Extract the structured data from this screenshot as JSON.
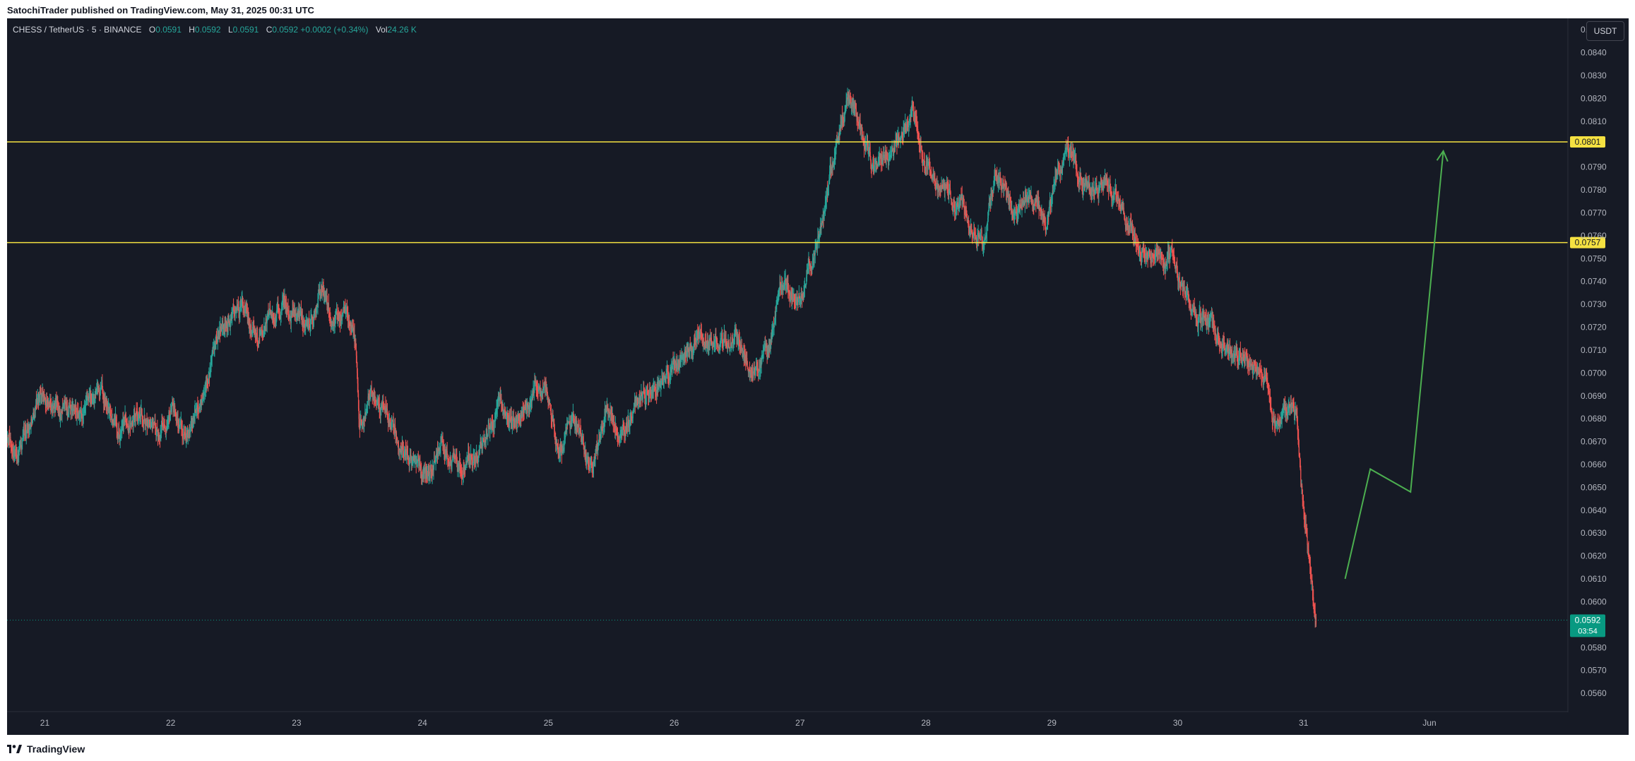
{
  "header": {
    "published": "SatochiTrader published on TradingView.com, May 31, 2025 00:31 UTC"
  },
  "legend": {
    "symbol": "CHESS / TetherUS · 5 · BINANCE",
    "o_label": "O",
    "o_value": "0.0591",
    "h_label": "H",
    "h_value": "0.0592",
    "l_label": "L",
    "l_value": "0.0591",
    "c_label": "C",
    "c_value": "0.0592 +0.0002 (+0.34%)",
    "vol_label": "Vol",
    "vol_value": "24.26 K"
  },
  "unit_button": "USDT",
  "footer": {
    "brand": "TradingView"
  },
  "colors": {
    "background": "#161a25",
    "up": "#26a69a",
    "down": "#ef5350",
    "level_line": "#f5e141",
    "arrow": "#4caf50",
    "current_price": "#089981"
  },
  "chart_data": {
    "type": "candlestick",
    "symbol": "CHESS/USDT",
    "interval": "5",
    "ylim": [
      0.0552,
      0.0855
    ],
    "y_ticks": [
      "0.0850",
      "0.0840",
      "0.0830",
      "0.0820",
      "0.0810",
      "0.0790",
      "0.0780",
      "0.0770",
      "0.0760",
      "0.0750",
      "0.0740",
      "0.0730",
      "0.0720",
      "0.0710",
      "0.0700",
      "0.0690",
      "0.0680",
      "0.0670",
      "0.0660",
      "0.0650",
      "0.0640",
      "0.0630",
      "0.0620",
      "0.0610",
      "0.0600",
      "0.0580",
      "0.0570",
      "0.0560"
    ],
    "x_ticks": [
      {
        "day": 21,
        "label": "21"
      },
      {
        "day": 22,
        "label": "22"
      },
      {
        "day": 23,
        "label": "23"
      },
      {
        "day": 24,
        "label": "24"
      },
      {
        "day": 25,
        "label": "25"
      },
      {
        "day": 26,
        "label": "26"
      },
      {
        "day": 27,
        "label": "27"
      },
      {
        "day": 28,
        "label": "28"
      },
      {
        "day": 29,
        "label": "29"
      },
      {
        "day": 30,
        "label": "30"
      },
      {
        "day": 31,
        "label": "31"
      },
      {
        "day": 32,
        "label": "Jun"
      }
    ],
    "xlim": [
      20.7,
      33.1
    ],
    "price_path": [
      [
        20.7,
        0.0672
      ],
      [
        20.8,
        0.0665
      ],
      [
        20.95,
        0.069
      ],
      [
        21.1,
        0.0685
      ],
      [
        21.3,
        0.068
      ],
      [
        21.45,
        0.069
      ],
      [
        21.6,
        0.0675
      ],
      [
        21.75,
        0.0682
      ],
      [
        21.9,
        0.0675
      ],
      [
        22.0,
        0.0688
      ],
      [
        22.1,
        0.067
      ],
      [
        22.25,
        0.069
      ],
      [
        22.4,
        0.072
      ],
      [
        22.55,
        0.0728
      ],
      [
        22.7,
        0.0718
      ],
      [
        22.85,
        0.0728
      ],
      [
        23.0,
        0.0725
      ],
      [
        23.1,
        0.072
      ],
      [
        23.2,
        0.0738
      ],
      [
        23.3,
        0.0722
      ],
      [
        23.4,
        0.0726
      ],
      [
        23.47,
        0.0712
      ],
      [
        23.5,
        0.0672
      ],
      [
        23.6,
        0.0692
      ],
      [
        23.75,
        0.068
      ],
      [
        23.9,
        0.0662
      ],
      [
        24.0,
        0.0655
      ],
      [
        24.15,
        0.0668
      ],
      [
        24.3,
        0.066
      ],
      [
        24.45,
        0.0665
      ],
      [
        24.6,
        0.0685
      ],
      [
        24.75,
        0.068
      ],
      [
        24.9,
        0.0695
      ],
      [
        25.0,
        0.0688
      ],
      [
        25.08,
        0.0662
      ],
      [
        25.2,
        0.068
      ],
      [
        25.35,
        0.0655
      ],
      [
        25.45,
        0.0682
      ],
      [
        25.6,
        0.0676
      ],
      [
        25.75,
        0.069
      ],
      [
        25.9,
        0.0695
      ],
      [
        26.05,
        0.0706
      ],
      [
        26.2,
        0.0718
      ],
      [
        26.35,
        0.0712
      ],
      [
        26.5,
        0.0716
      ],
      [
        26.62,
        0.07
      ],
      [
        26.75,
        0.0712
      ],
      [
        26.85,
        0.0738
      ],
      [
        27.0,
        0.0732
      ],
      [
        27.15,
        0.076
      ],
      [
        27.3,
        0.08
      ],
      [
        27.38,
        0.082
      ],
      [
        27.5,
        0.0805
      ],
      [
        27.6,
        0.0788
      ],
      [
        27.75,
        0.08
      ],
      [
        27.9,
        0.0812
      ],
      [
        28.0,
        0.0792
      ],
      [
        28.1,
        0.078
      ],
      [
        28.2,
        0.0775
      ],
      [
        28.35,
        0.0768
      ],
      [
        28.45,
        0.0756
      ],
      [
        28.55,
        0.0788
      ],
      [
        28.7,
        0.0772
      ],
      [
        28.85,
        0.0778
      ],
      [
        28.95,
        0.0768
      ],
      [
        29.05,
        0.0788
      ],
      [
        29.12,
        0.0796
      ],
      [
        29.25,
        0.0782
      ],
      [
        29.4,
        0.0778
      ],
      [
        29.5,
        0.078
      ],
      [
        29.58,
        0.0768
      ],
      [
        29.7,
        0.0755
      ],
      [
        29.85,
        0.0748
      ],
      [
        29.95,
        0.075
      ],
      [
        30.05,
        0.0735
      ],
      [
        30.15,
        0.0724
      ],
      [
        30.28,
        0.072
      ],
      [
        30.4,
        0.0706
      ],
      [
        30.55,
        0.0708
      ],
      [
        30.7,
        0.0698
      ],
      [
        30.78,
        0.0676
      ],
      [
        30.9,
        0.0684
      ],
      [
        30.95,
        0.0676
      ],
      [
        31.0,
        0.064
      ],
      [
        31.05,
        0.0615
      ],
      [
        31.08,
        0.06
      ],
      [
        31.1,
        0.0592
      ]
    ],
    "candle_minutes": 5,
    "horizontal_levels": [
      {
        "price": 0.0801,
        "label": "0.0801"
      },
      {
        "price": 0.0757,
        "label": "0.0757"
      }
    ],
    "projection_path": [
      {
        "day": 31.33,
        "price": 0.061
      },
      {
        "day": 31.53,
        "price": 0.0658
      },
      {
        "day": 31.85,
        "price": 0.0648
      },
      {
        "day": 32.11,
        "price": 0.0797
      }
    ],
    "current_price": {
      "label": "0.0592",
      "countdown": "03:54",
      "price": 0.0592
    }
  }
}
